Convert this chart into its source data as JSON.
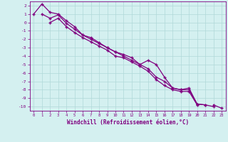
{
  "x_values": [
    0,
    1,
    2,
    3,
    4,
    5,
    6,
    7,
    8,
    9,
    10,
    11,
    12,
    13,
    14,
    15,
    16,
    17,
    18,
    19,
    20,
    21,
    22,
    23
  ],
  "line1": [
    1.0,
    2.2,
    1.2,
    1.0,
    0.2,
    -0.5,
    -1.5,
    -1.8,
    -2.4,
    -3.0,
    -3.5,
    -3.8,
    -4.2,
    -5.0,
    -4.5,
    -5.0,
    -6.5,
    -7.8,
    -8.0,
    -7.8,
    -9.7,
    -9.8,
    -10.0,
    null
  ],
  "line2": [
    null,
    1.0,
    0.5,
    0.9,
    -0.1,
    -0.8,
    -1.5,
    -2.0,
    -2.5,
    -3.0,
    -3.5,
    -4.0,
    -4.5,
    -5.0,
    -5.5,
    -6.5,
    -7.0,
    -7.8,
    -8.0,
    -8.0,
    -9.7,
    -9.8,
    null,
    null
  ],
  "line3": [
    null,
    null,
    0.0,
    0.5,
    -0.5,
    -1.2,
    -1.8,
    -2.3,
    -2.8,
    -3.3,
    -4.0,
    -4.2,
    -4.7,
    -5.2,
    -5.8,
    -6.8,
    -7.5,
    -8.0,
    -8.2,
    -8.2,
    -9.8,
    null,
    -9.8,
    -10.2
  ],
  "line_color": "#800080",
  "bg_color": "#d4f0f0",
  "grid_color": "#b0d8d8",
  "xlabel": "Windchill (Refroidissement éolien,°C)",
  "ylim": [
    -10.5,
    2.5
  ],
  "xlim": [
    -0.5,
    23.5
  ],
  "xticks": [
    0,
    1,
    2,
    3,
    4,
    5,
    6,
    7,
    8,
    9,
    10,
    11,
    12,
    13,
    14,
    15,
    16,
    17,
    18,
    19,
    20,
    21,
    22,
    23
  ],
  "yticks": [
    2,
    1,
    0,
    -1,
    -2,
    -3,
    -4,
    -5,
    -6,
    -7,
    -8,
    -9,
    -10
  ]
}
